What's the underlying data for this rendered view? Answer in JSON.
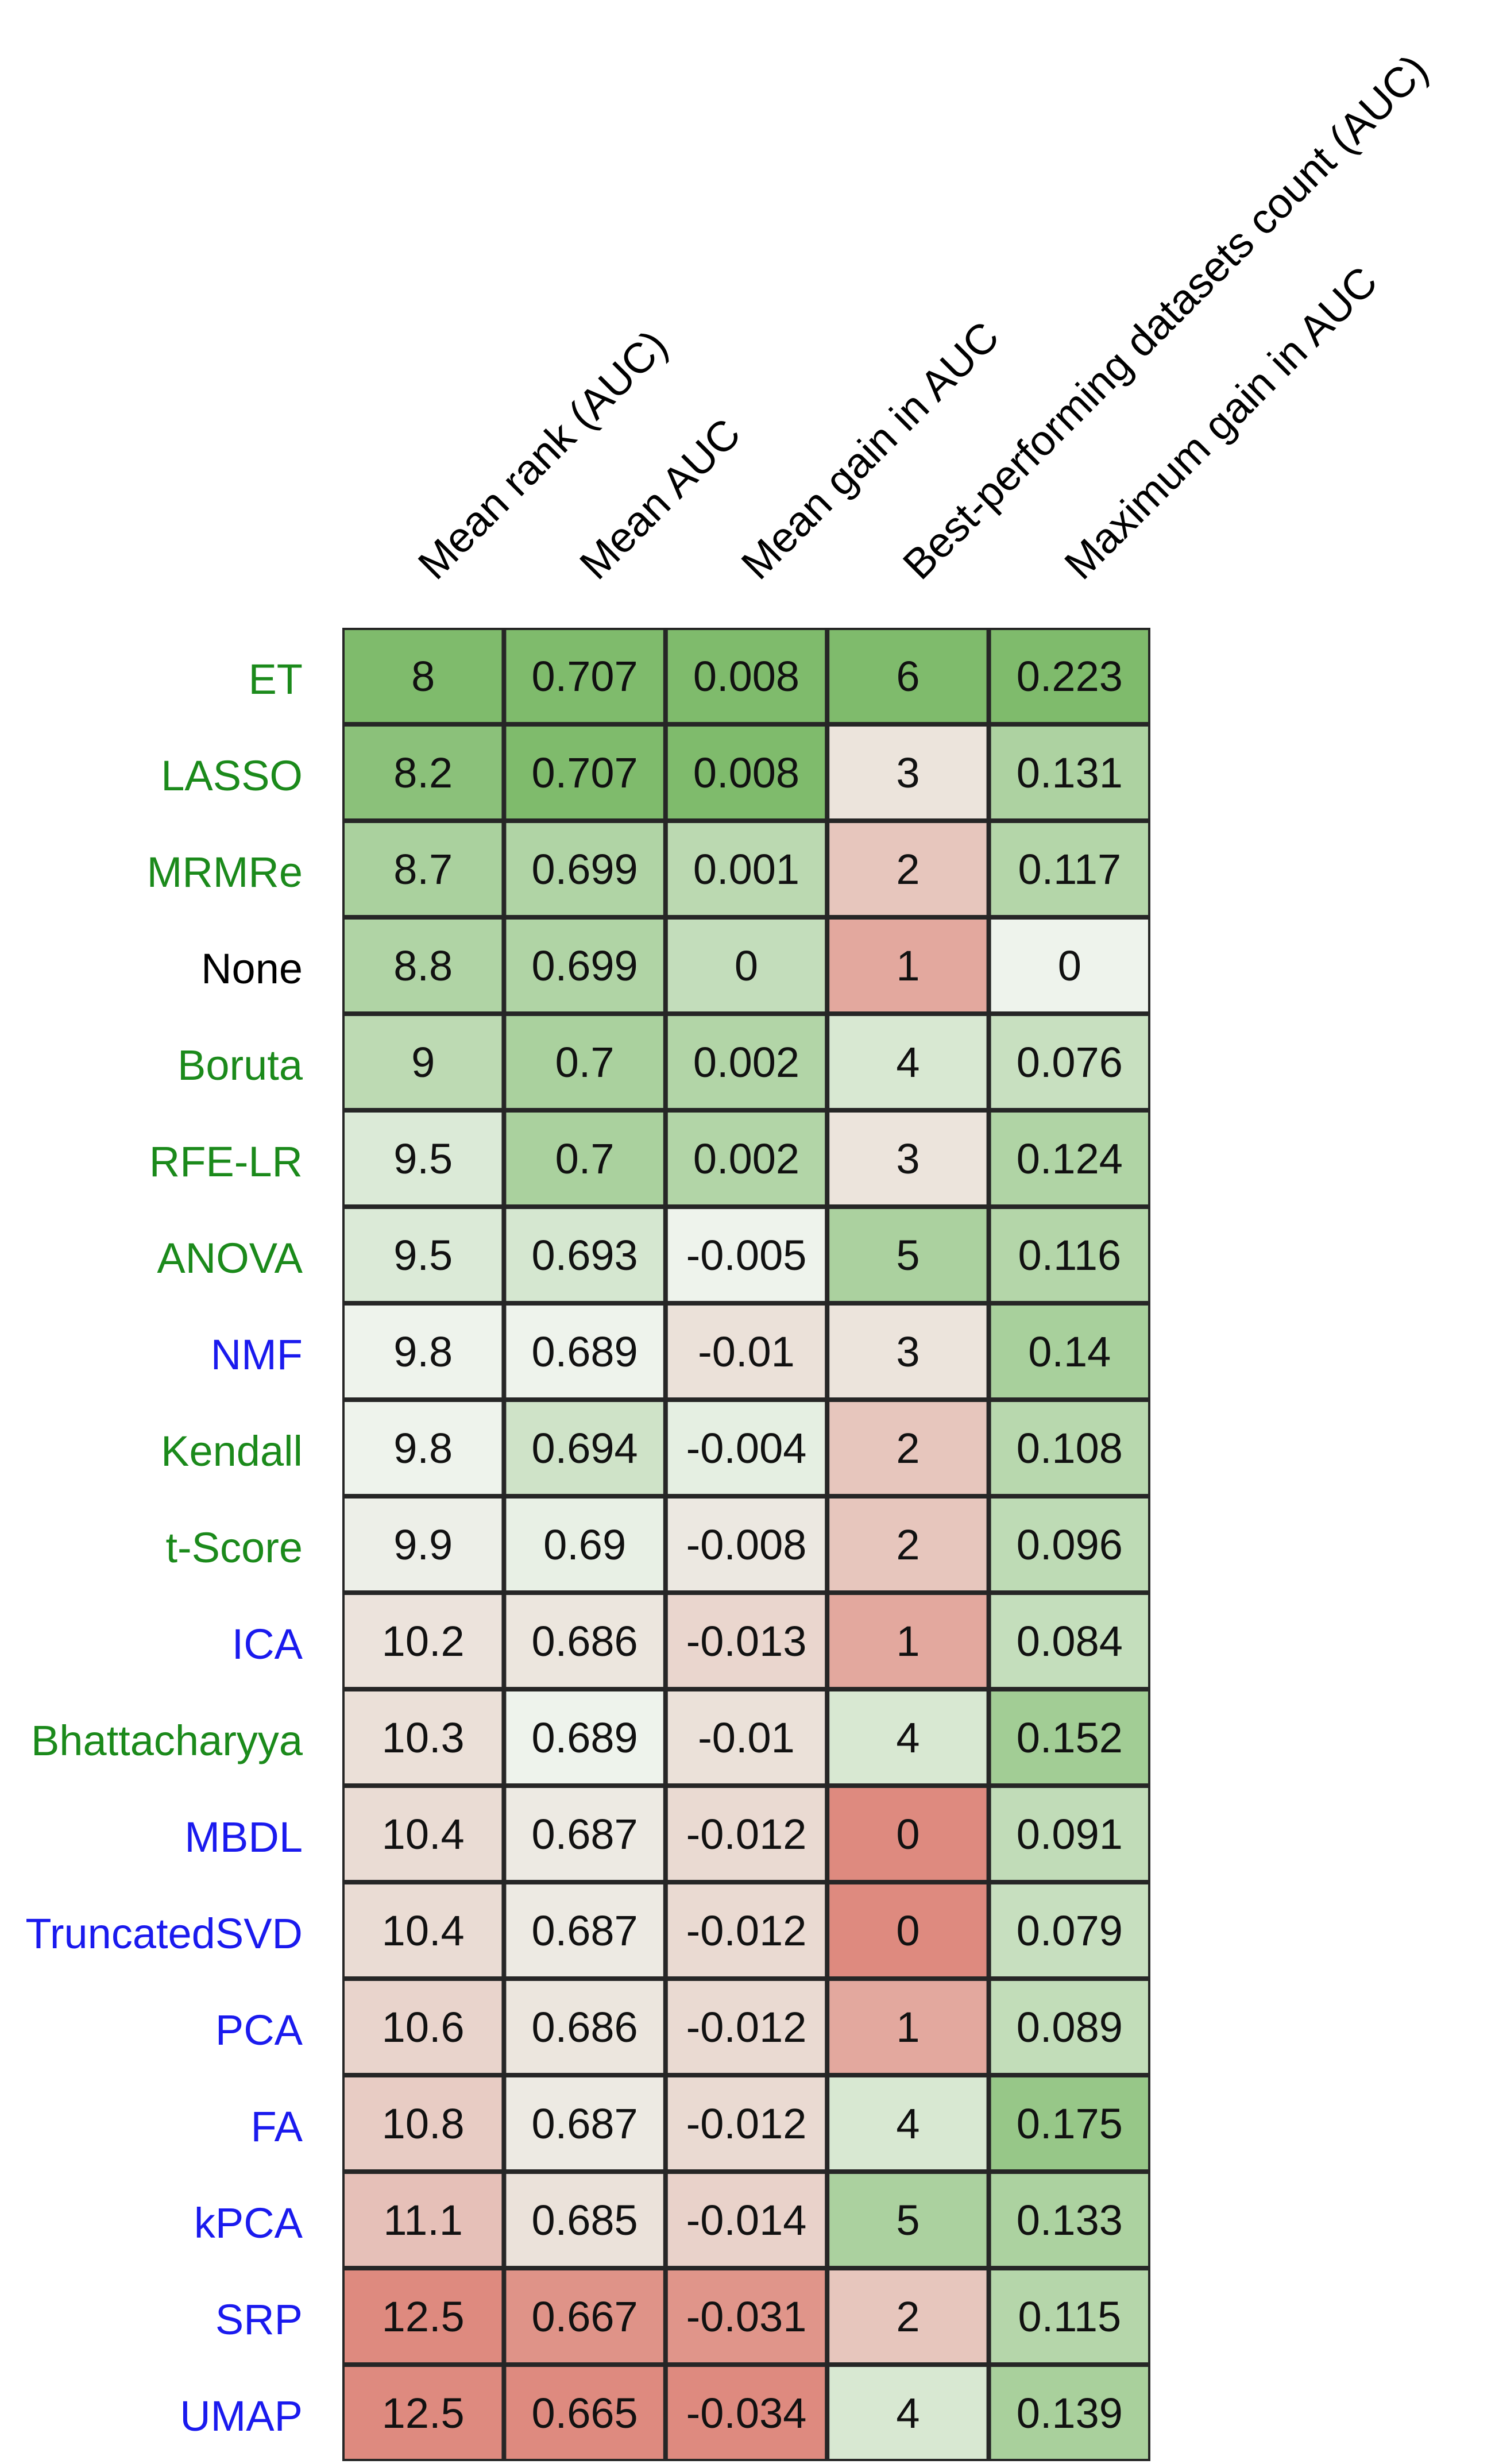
{
  "chart_data": {
    "type": "heatmap",
    "title": "",
    "columns": [
      "Mean rank (AUC)",
      "Mean AUC",
      "Mean gain in AUC",
      "Best-performing datasets count (AUC)",
      "Maximum gain in AUC"
    ],
    "rows": [
      {
        "label": "ET",
        "group": "selection",
        "values": [
          "8",
          "0.707",
          "0.008",
          "6",
          "0.223"
        ]
      },
      {
        "label": "LASSO",
        "group": "selection",
        "values": [
          "8.2",
          "0.707",
          "0.008",
          "3",
          "0.131"
        ]
      },
      {
        "label": "MRMRe",
        "group": "selection",
        "values": [
          "8.7",
          "0.699",
          "0.001",
          "2",
          "0.117"
        ]
      },
      {
        "label": "None",
        "group": "none",
        "values": [
          "8.8",
          "0.699",
          "0",
          "1",
          "0"
        ]
      },
      {
        "label": "Boruta",
        "group": "selection",
        "values": [
          "9",
          "0.7",
          "0.002",
          "4",
          "0.076"
        ]
      },
      {
        "label": "RFE-LR",
        "group": "selection",
        "values": [
          "9.5",
          "0.7",
          "0.002",
          "3",
          "0.124"
        ]
      },
      {
        "label": "ANOVA",
        "group": "selection",
        "values": [
          "9.5",
          "0.693",
          "-0.005",
          "5",
          "0.116"
        ]
      },
      {
        "label": "NMF",
        "group": "projection",
        "values": [
          "9.8",
          "0.689",
          "-0.01",
          "3",
          "0.14"
        ]
      },
      {
        "label": "Kendall",
        "group": "selection",
        "values": [
          "9.8",
          "0.694",
          "-0.004",
          "2",
          "0.108"
        ]
      },
      {
        "label": "t-Score",
        "group": "selection",
        "values": [
          "9.9",
          "0.69",
          "-0.008",
          "2",
          "0.096"
        ]
      },
      {
        "label": "ICA",
        "group": "projection",
        "values": [
          "10.2",
          "0.686",
          "-0.013",
          "1",
          "0.084"
        ]
      },
      {
        "label": "Bhattacharyya",
        "group": "selection",
        "values": [
          "10.3",
          "0.689",
          "-0.01",
          "4",
          "0.152"
        ]
      },
      {
        "label": "MBDL",
        "group": "projection",
        "values": [
          "10.4",
          "0.687",
          "-0.012",
          "0",
          "0.091"
        ]
      },
      {
        "label": "TruncatedSVD",
        "group": "projection",
        "values": [
          "10.4",
          "0.687",
          "-0.012",
          "0",
          "0.079"
        ]
      },
      {
        "label": "PCA",
        "group": "projection",
        "values": [
          "10.6",
          "0.686",
          "-0.012",
          "1",
          "0.089"
        ]
      },
      {
        "label": "FA",
        "group": "projection",
        "values": [
          "10.8",
          "0.687",
          "-0.012",
          "4",
          "0.175"
        ]
      },
      {
        "label": "kPCA",
        "group": "projection",
        "values": [
          "11.1",
          "0.685",
          "-0.014",
          "5",
          "0.133"
        ]
      },
      {
        "label": "SRP",
        "group": "projection",
        "values": [
          "12.5",
          "0.667",
          "-0.031",
          "2",
          "0.115"
        ]
      },
      {
        "label": "UMAP",
        "group": "projection",
        "values": [
          "12.5",
          "0.665",
          "-0.034",
          "4",
          "0.139"
        ]
      }
    ],
    "label_colors": {
      "selection": "#1b8a1b",
      "projection": "#1a1aee",
      "none": "#000000"
    },
    "colormap": {
      "good": "#7fbb6c",
      "neutral": "#eef3ec",
      "bad": "#de8a7f"
    },
    "column_direction": [
      "lower_is_better",
      "higher_is_better",
      "higher_is_better",
      "higher_is_better",
      "higher_is_better"
    ],
    "column_color_centers": [
      "9.8",
      "0.689",
      "-0.005",
      "3.5",
      "0"
    ]
  }
}
